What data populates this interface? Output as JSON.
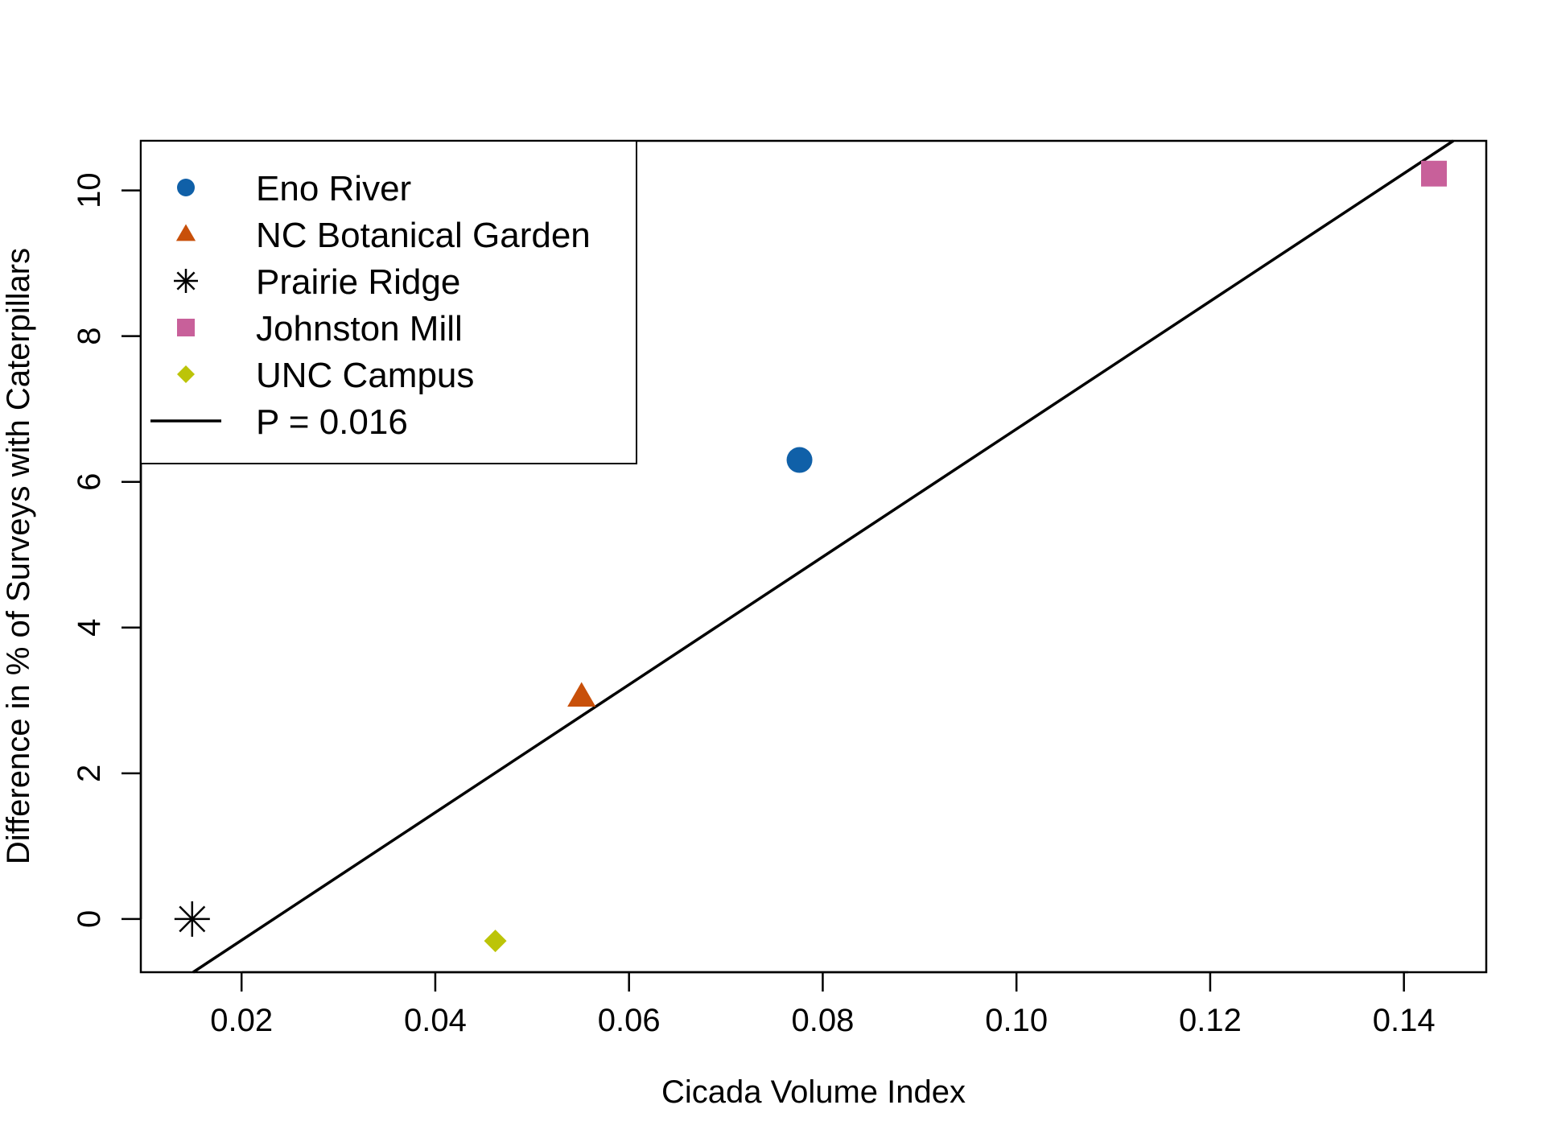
{
  "chart_data": {
    "type": "scatter",
    "title": "",
    "xlabel": "Cicada Volume Index",
    "ylabel": "Difference in  % of Surveys with Caterpillars",
    "xlim": [
      0.0096,
      0.1485
    ],
    "ylim": [
      -0.73,
      10.68
    ],
    "x_ticks": [
      "0.02",
      "0.04",
      "0.06",
      "0.08",
      "0.10",
      "0.12",
      "0.14"
    ],
    "y_ticks": [
      "0",
      "2",
      "4",
      "6",
      "8",
      "10"
    ],
    "grid": false,
    "legend_position": "top-left",
    "series": [
      {
        "name": "Eno River",
        "marker": "circle",
        "color": "#1060a8",
        "x": 0.0776,
        "y": 6.3
      },
      {
        "name": "NC Botanical Garden",
        "marker": "triangle",
        "color": "#c8500a",
        "x": 0.0551,
        "y": 3.05
      },
      {
        "name": "Prairie Ridge",
        "marker": "asterisk",
        "color": "#000000",
        "x": 0.0149,
        "y": 0.0
      },
      {
        "name": "Johnston Mill",
        "marker": "square",
        "color": "#c8609a",
        "x": 0.1431,
        "y": 10.23
      },
      {
        "name": "UNC Campus",
        "marker": "diamond",
        "color": "#bcc408",
        "x": 0.0462,
        "y": -0.3
      }
    ],
    "fit_line": {
      "label": "P = 0.016",
      "color": "#000000",
      "x": [
        0.015,
        0.1451
      ],
      "y": [
        -0.73,
        10.68
      ]
    }
  }
}
